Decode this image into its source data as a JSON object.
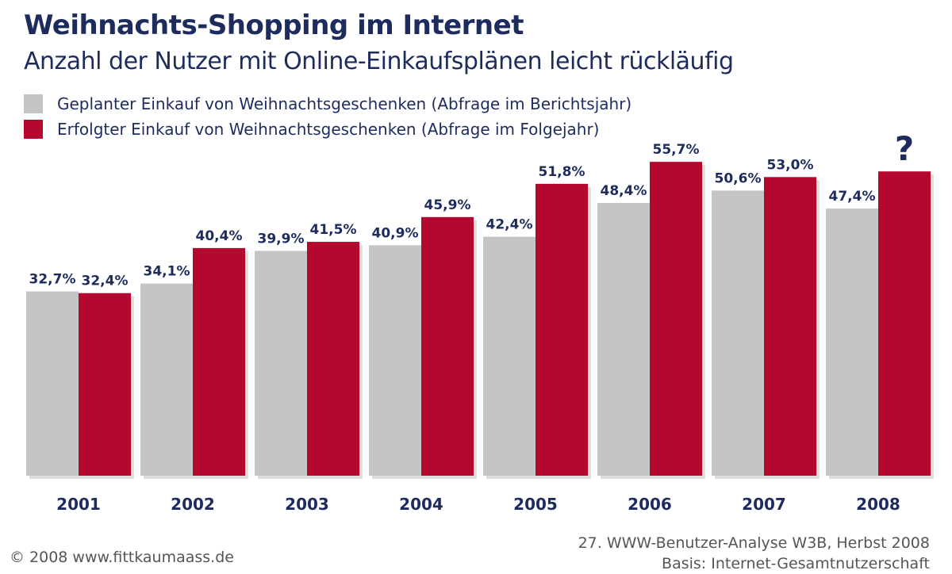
{
  "chart_data": {
    "type": "bar",
    "title": "Weihnachts-Shopping im Internet",
    "subtitle": "Anzahl der Nutzer mit Online-Einkaufsplänen leicht rückläufig",
    "categories": [
      "2001",
      "2002",
      "2003",
      "2004",
      "2005",
      "2006",
      "2007",
      "2008"
    ],
    "series": [
      {
        "name": "Geplanter Einkauf von Weihnachtsgeschenken (Abfrage im Berichtsjahr)",
        "color": "#c4c4c4",
        "values": [
          32.7,
          34.1,
          39.9,
          40.9,
          42.4,
          48.4,
          50.6,
          47.4
        ],
        "labels": [
          "32,7%",
          "34,1%",
          "39,9%",
          "40,9%",
          "42,4%",
          "48,4%",
          "50,6%",
          "47,4%"
        ]
      },
      {
        "name": "Erfolgter Einkauf von Weihnachtsgeschenken (Abfrage im Folgejahr)",
        "color": "#b4082f",
        "values": [
          32.4,
          40.4,
          41.5,
          45.9,
          51.8,
          55.7,
          53.0,
          54.0
        ],
        "labels": [
          "32,4%",
          "40,4%",
          "41,5%",
          "45,9%",
          "51,8%",
          "55,7%",
          "53,0%",
          "?"
        ]
      }
    ],
    "xlabel": "",
    "ylabel": "",
    "ylim": [
      0,
      56
    ],
    "grid": false,
    "legend_position": "top-left"
  },
  "footer": {
    "copyright": "© 2008 www.fittkaumaass.de",
    "source_line1": "27. WWW-Benutzer-Analyse W3B, Herbst 2008",
    "source_line2": "Basis: Internet-Gesamtnutzerschaft"
  },
  "colors": {
    "title": "#1d2c5c",
    "label": "#1d2c5c",
    "footer": "#555555"
  }
}
